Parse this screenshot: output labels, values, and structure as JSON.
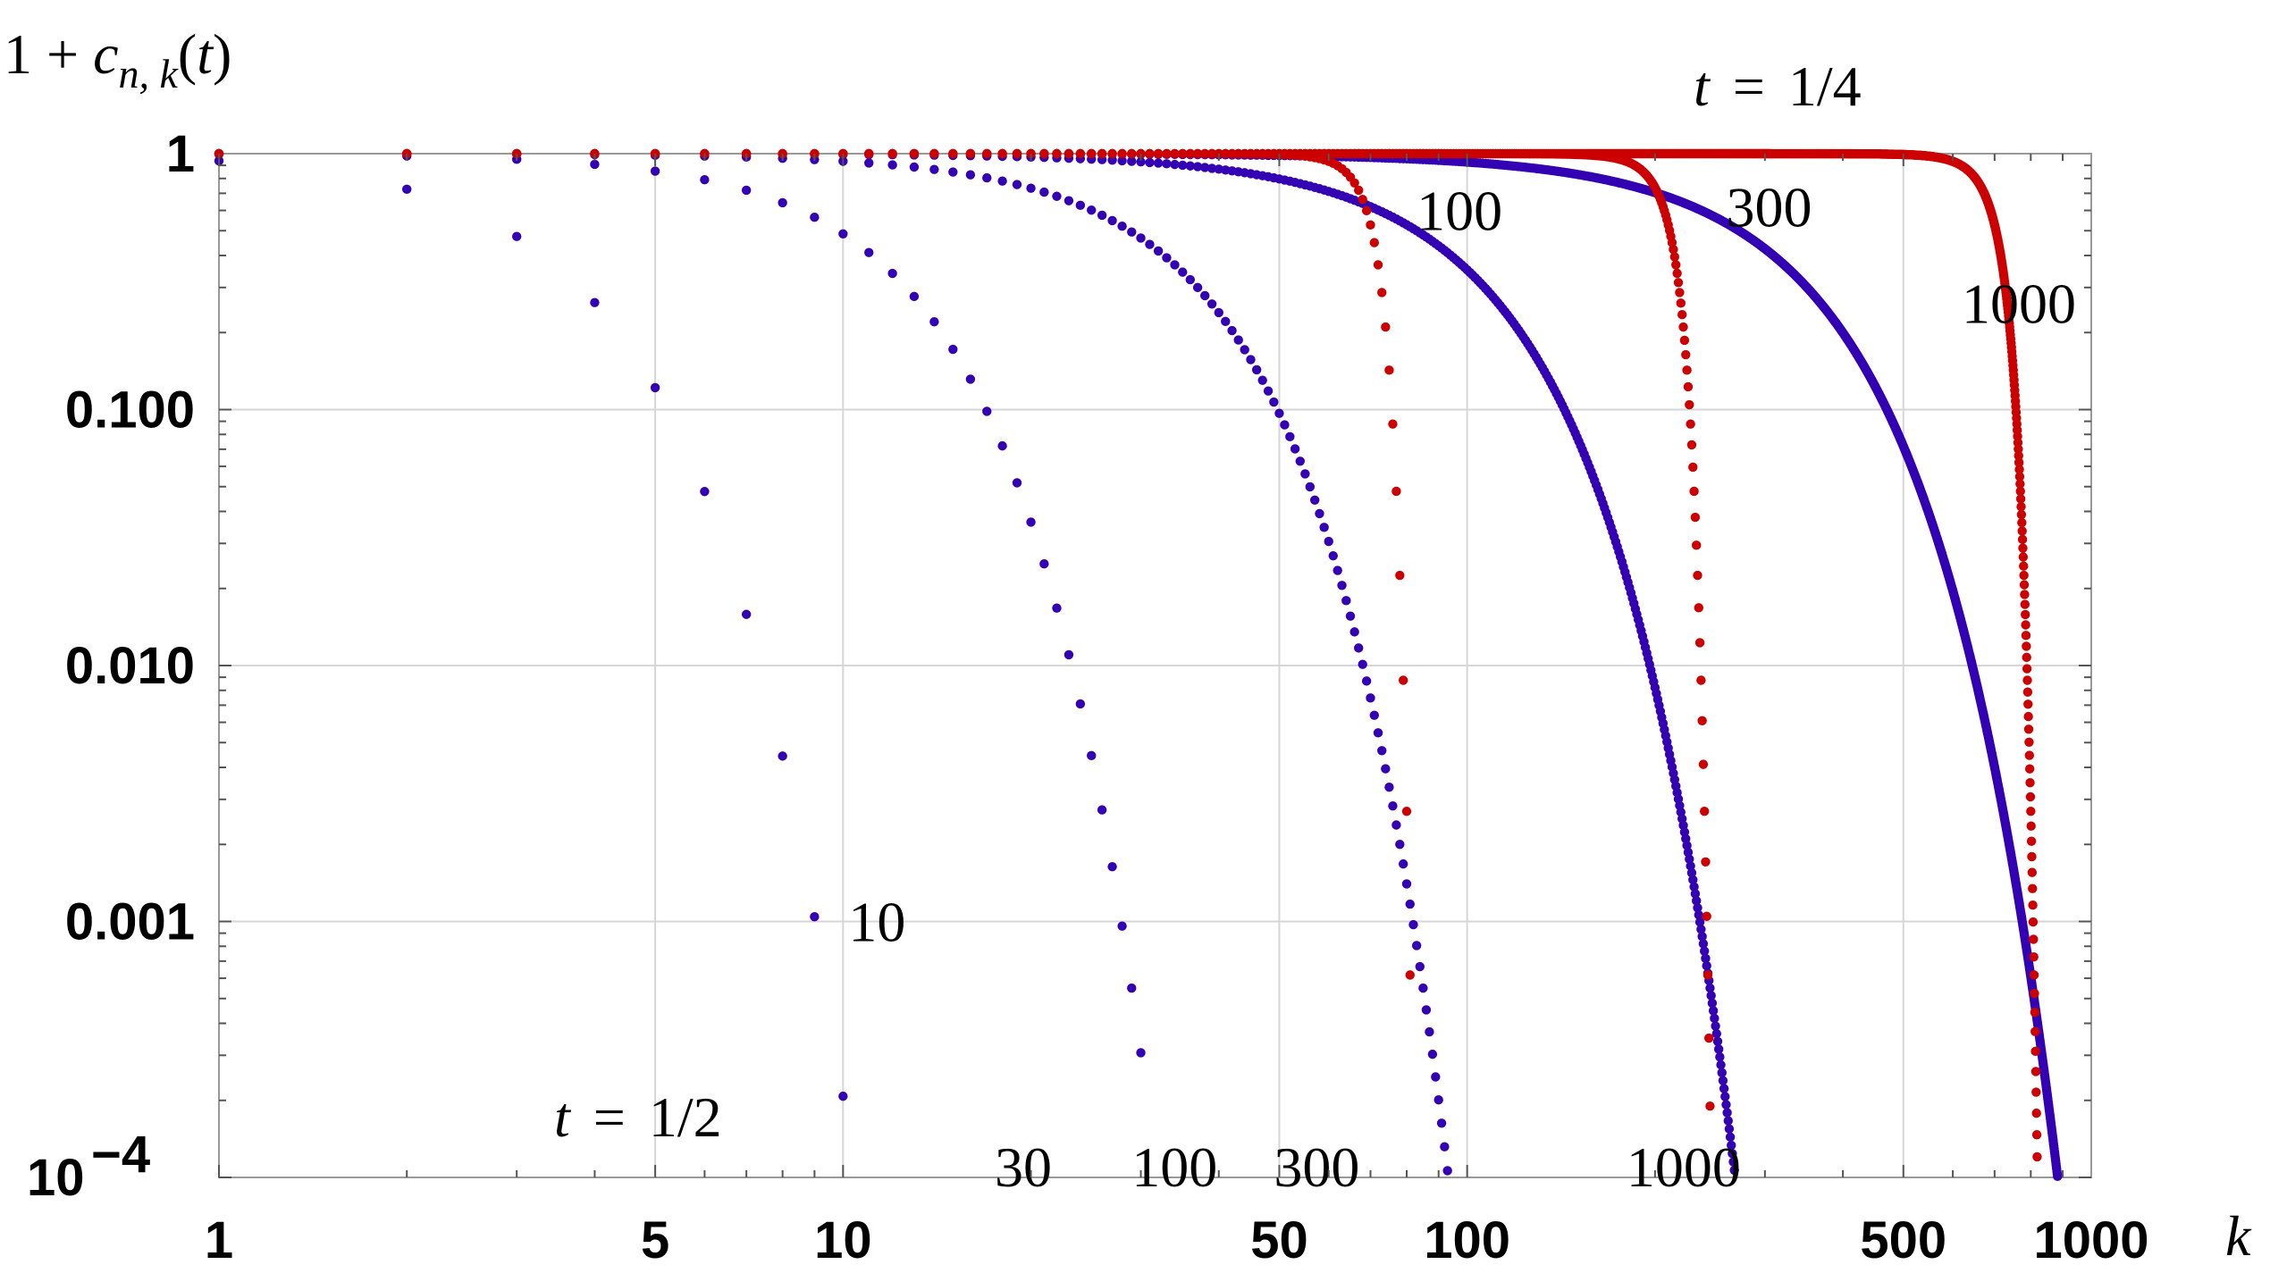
{
  "chart_data": {
    "type": "scatter",
    "xscale": "log",
    "yscale": "log",
    "xlim": [
      1,
      1000
    ],
    "ylim": [
      0.0001,
      1
    ],
    "grid": true,
    "title": "",
    "ylabel": "1 + c_{n, k}(t)",
    "ylabel_parts": {
      "lead": "1 + ",
      "c": "c",
      "sub": "n, k",
      "open": "(",
      "t": "t",
      "close": ")"
    },
    "xlabel": "k",
    "x_ticks": [
      1,
      5,
      10,
      50,
      100,
      500,
      1000
    ],
    "x_tick_labels": [
      "1",
      "5",
      "10",
      "50",
      "100",
      "500",
      "1000"
    ],
    "y_ticks": [
      1,
      0.1,
      0.01,
      0.001,
      0.0001
    ],
    "y_tick_labels": [
      "1",
      "0.100",
      "0.010",
      "0.001",
      "10",
      "−4"
    ],
    "group_labels": [
      {
        "t": "t",
        "eq": "=",
        "val": "1/2",
        "color": "#3300b3",
        "position": "bottom-left"
      },
      {
        "t": "t",
        "eq": "=",
        "val": "1/4",
        "color": "#cc0000",
        "position": "top-right"
      }
    ],
    "series": [
      {
        "name": "n=10",
        "t": "1/2",
        "n": 10,
        "color": "#3300b3",
        "label": "10",
        "label_k": 10.2,
        "label_y": 0.001
      },
      {
        "name": "n=30",
        "t": "1/2",
        "n": 30,
        "color": "#3300b3",
        "label": "30",
        "label_k": 17.5,
        "label_y": 0.00011
      },
      {
        "name": "n=100",
        "t": "1/2",
        "n": 100,
        "color": "#3300b3",
        "label": "100",
        "label_k": 29,
        "label_y": 0.00011
      },
      {
        "name": "n=300",
        "t": "1/2",
        "n": 300,
        "color": "#3300b3",
        "label": "300",
        "label_k": 49,
        "label_y": 0.00011
      },
      {
        "name": "n=1000",
        "t": "1/2",
        "n": 1000,
        "color": "#3300b3",
        "label": "1000",
        "label_k": 180,
        "label_y": 0.00011
      },
      {
        "name": "n=100",
        "t": "1/4",
        "n": 100,
        "color": "#cc0000",
        "label": "100",
        "label_k": 83,
        "label_y": 0.6
      },
      {
        "name": "n=300",
        "t": "1/4",
        "n": 300,
        "color": "#cc0000",
        "label": "300",
        "label_k": 260,
        "label_y": 0.62
      },
      {
        "name": "n=1000",
        "t": "1/4",
        "n": 1000,
        "color": "#cc0000",
        "label": "1000",
        "label_k": 620,
        "label_y": 0.26
      }
    ]
  }
}
